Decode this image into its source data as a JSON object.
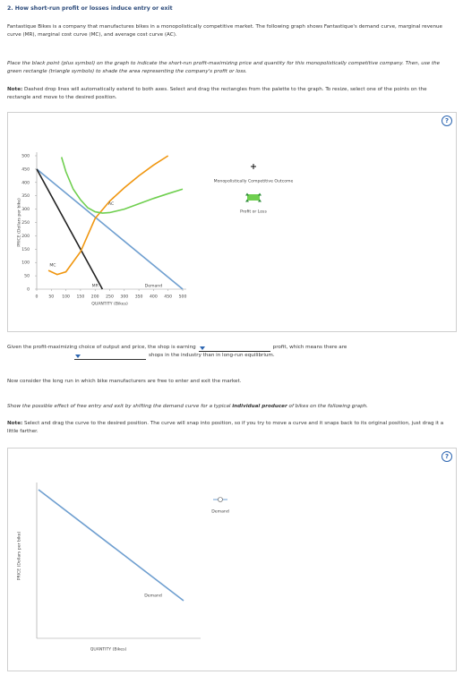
{
  "header": {
    "title": "2. How short-run profit or losses induce entry or exit"
  },
  "intro": "Fantastique Bikes is a company that manufactures bikes in a monopolistically competitive market. The following graph shows Fantastique's demand curve, marginal revenue curve (MR), marginal cost curve (MC), and average cost curve (AC).",
  "instructions": "Place the black point (plus symbol) on the graph to indicate the short-run profit-maximizing price and quantity for this monopolistically competitive company. Then, use the green rectangle (triangle symbols) to shade the area representing the company's profit or loss.",
  "note1": {
    "label": "Note:",
    "text": "Dashed drop lines will automatically extend to both axes. Select and drag the rectangles from the palette to the graph. To resize, select one of the points on the rectangle and move to the desired position."
  },
  "graph1": {
    "type": "line",
    "help": "?",
    "x_label": "QUANTITY (Bikes)",
    "y_label": "PRICE (Dollars per bike)",
    "xlim": [
      0,
      500
    ],
    "ylim": [
      0,
      500
    ],
    "xticks": [
      0,
      50,
      100,
      150,
      200,
      250,
      300,
      350,
      400,
      450,
      500
    ],
    "yticks": [
      0,
      50,
      100,
      150,
      200,
      250,
      300,
      350,
      400,
      450,
      500
    ],
    "curves": [
      {
        "name": "Demand",
        "color": "#6f9fd0",
        "x": [
          0,
          500
        ],
        "y": [
          450,
          0
        ]
      },
      {
        "name": "MR",
        "color": "#222222",
        "x": [
          0,
          225
        ],
        "y": [
          450,
          0
        ]
      },
      {
        "name": "MC",
        "color": "#f0960f",
        "x": [
          40,
          70,
          100,
          150,
          200,
          250,
          300,
          350,
          400,
          450
        ],
        "y": [
          70,
          55,
          65,
          140,
          265,
          330,
          380,
          425,
          465,
          500
        ]
      },
      {
        "name": "AC",
        "color": "#6fcf4f",
        "x": [
          85,
          100,
          125,
          150,
          175,
          200,
          225,
          250,
          300,
          350,
          400,
          450,
          500
        ],
        "y": [
          495,
          440,
          375,
          335,
          305,
          290,
          285,
          287,
          300,
          320,
          340,
          358,
          375
        ]
      }
    ],
    "palette": [
      {
        "label": "Monopolistically Competitive Outcome"
      },
      {
        "label": "Profit or Loss"
      }
    ]
  },
  "question": {
    "before": "Given the profit-maximizing choice of output and price, the shop is earning",
    "middle": "profit, which means there are",
    "after": "shops in the industry than in long-run equilibrium."
  },
  "paragraph2": "Now consider the long run in which bike manufacturers are free to enter and exit the market.",
  "instructions2": {
    "before": "Show the possible effect of free entry and exit by shifting the demand curve for a typical",
    "emphasis": "individual producer",
    "after": "of bikes on the following graph."
  },
  "note2": {
    "label": "Note:",
    "text": "Select and drag the curve to the desired position. The curve will snap into position, so if you try to move a curve and it snaps back to its original position, just drag it a little farther."
  },
  "graph2": {
    "help": "?",
    "x_label": "QUANTITY (Bikes)",
    "y_label": "PRICE (Dollars per bike)",
    "curve_label": "Demand",
    "palette": [
      {
        "label": "Demand"
      }
    ]
  }
}
